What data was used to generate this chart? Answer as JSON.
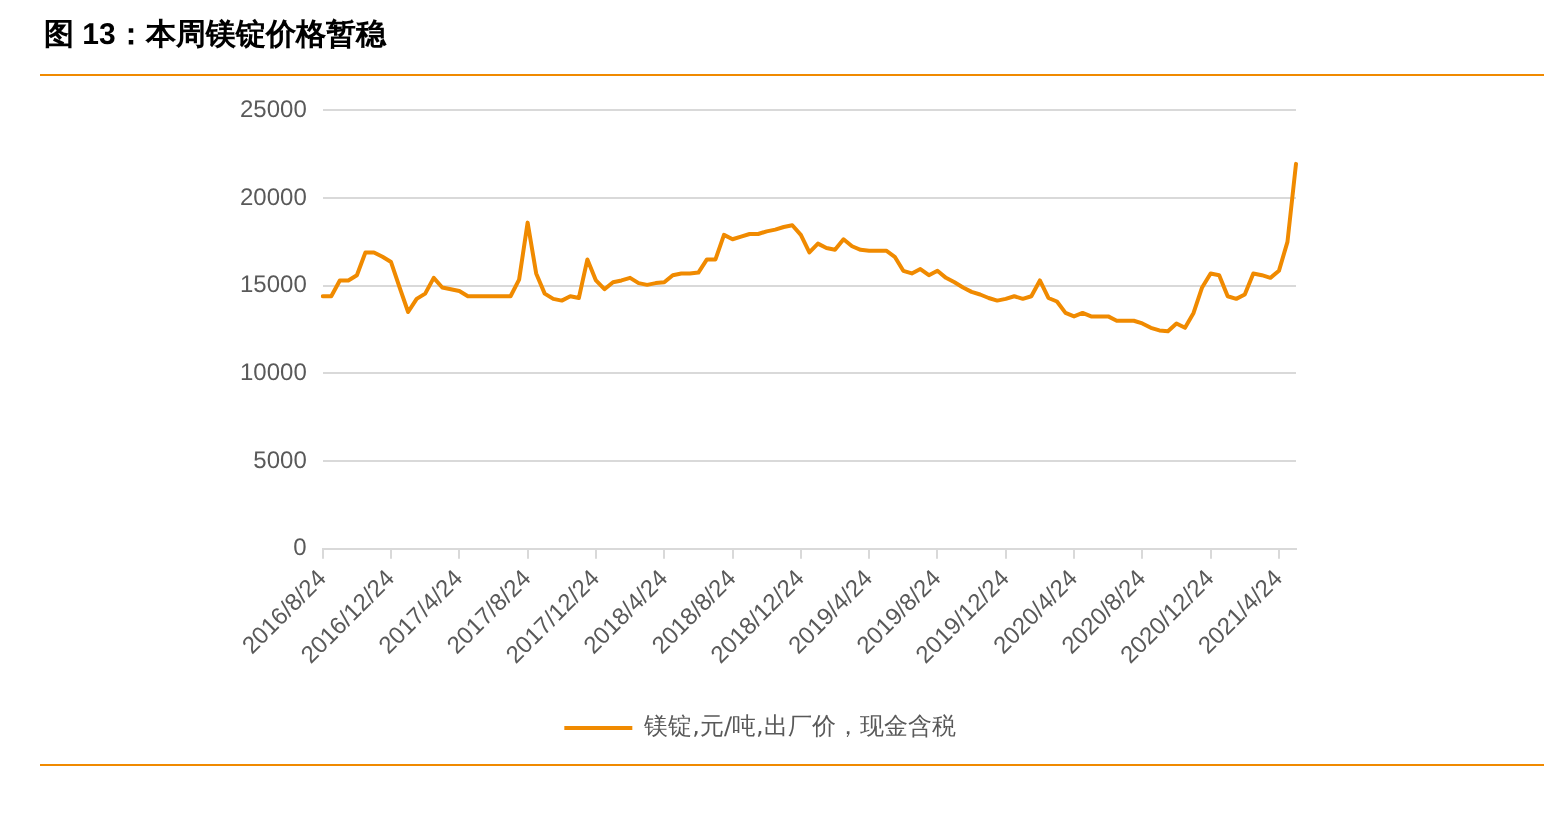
{
  "chart_data": {
    "type": "line",
    "title": "图 13：本周镁锭价格暂稳",
    "categories": [
      "2016/8/24",
      null,
      null,
      null,
      null,
      null,
      null,
      null,
      "2016/12/24",
      null,
      null,
      null,
      null,
      null,
      null,
      null,
      "2017/4/24",
      null,
      null,
      null,
      null,
      null,
      null,
      null,
      "2017/8/24",
      null,
      null,
      null,
      null,
      null,
      null,
      null,
      "2017/12/24",
      null,
      null,
      null,
      null,
      null,
      null,
      null,
      "2018/4/24",
      null,
      null,
      null,
      null,
      null,
      null,
      null,
      "2018/8/24",
      null,
      null,
      null,
      null,
      null,
      null,
      null,
      "2018/12/24",
      null,
      null,
      null,
      null,
      null,
      null,
      null,
      "2019/4/24",
      null,
      null,
      null,
      null,
      null,
      null,
      null,
      "2019/8/24",
      null,
      null,
      null,
      null,
      null,
      null,
      null,
      "2019/12/24",
      null,
      null,
      null,
      null,
      null,
      null,
      null,
      "2020/4/24",
      null,
      null,
      null,
      null,
      null,
      null,
      null,
      "2020/8/24",
      null,
      null,
      null,
      null,
      null,
      null,
      null,
      "2020/12/24",
      null,
      null,
      null,
      null,
      null,
      null,
      null,
      "2021/4/24",
      null,
      null
    ],
    "series": [
      {
        "name": "镁锭,元/吨,出厂价，现金含税",
        "color": "#f08a00",
        "values": [
          14400,
          14400,
          15300,
          15300,
          15600,
          16900,
          16900,
          16650,
          16350,
          14900,
          13500,
          14250,
          14550,
          15450,
          14900,
          14800,
          14700,
          14400,
          14400,
          14400,
          14400,
          14400,
          14400,
          15350,
          18600,
          15700,
          14550,
          14250,
          14150,
          14400,
          14300,
          16500,
          15300,
          14800,
          15200,
          15300,
          15450,
          15150,
          15050,
          15150,
          15200,
          15600,
          15700,
          15700,
          15750,
          16500,
          16500,
          17900,
          17650,
          17800,
          17950,
          17950,
          18100,
          18200,
          18350,
          18450,
          17900,
          16900,
          17400,
          17150,
          17050,
          17650,
          17250,
          17050,
          17000,
          17000,
          17000,
          16650,
          15850,
          15700,
          15950,
          15600,
          15850,
          15450,
          15200,
          14900,
          14650,
          14500,
          14300,
          14150,
          14250,
          14400,
          14250,
          14400,
          15300,
          14300,
          14100,
          13450,
          13250,
          13450,
          13250,
          13250,
          13250,
          13000,
          13000,
          13000,
          12850,
          12600,
          12450,
          12400,
          12850,
          12600,
          13450,
          14900,
          15700,
          15600,
          14400,
          14250,
          14500,
          15700,
          15600,
          15450,
          15850,
          17500,
          21950
        ]
      }
    ],
    "ylim": [
      0,
      25000
    ],
    "yticks": [
      0,
      5000,
      10000,
      15000,
      20000,
      25000
    ],
    "grid": "y",
    "legend": "bottom",
    "marker": "none",
    "line_style": "solid"
  }
}
